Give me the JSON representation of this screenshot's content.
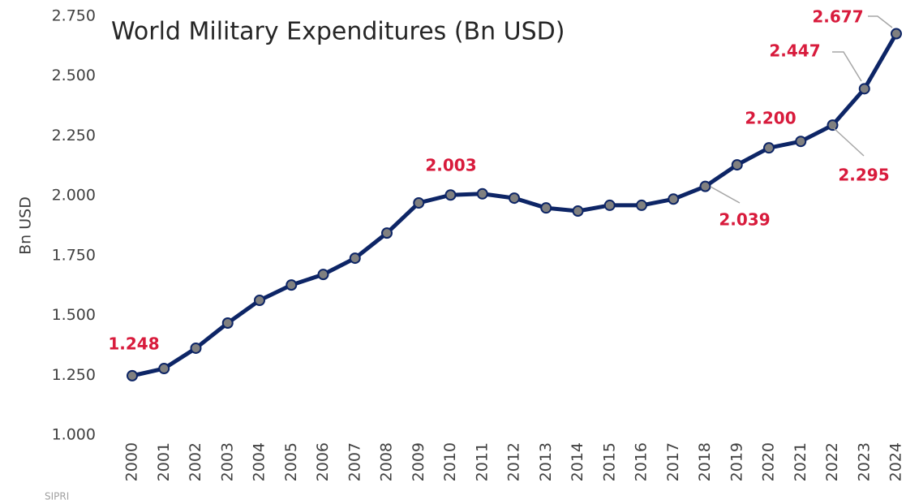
{
  "chart_data": {
    "type": "line",
    "title": "World Military Expenditures (Bn USD)",
    "y_label": "Bn USD",
    "source": "SIPRI",
    "categories": [
      "2000",
      "2001",
      "2002",
      "2003",
      "2004",
      "2005",
      "2006",
      "2007",
      "2008",
      "2009",
      "2010",
      "2011",
      "2012",
      "2013",
      "2014",
      "2015",
      "2016",
      "2017",
      "2018",
      "2019",
      "2020",
      "2021",
      "2022",
      "2023",
      "2024"
    ],
    "series": [
      {
        "name": "World Military Expenditures",
        "color": "#0d2566",
        "marker_color": "#808080",
        "values": [
          1248,
          1278,
          1363,
          1468,
          1563,
          1627,
          1671,
          1739,
          1844,
          1970,
          2003,
          2008,
          1990,
          1949,
          1936,
          1960,
          1960,
          1986,
          2039,
          2129,
          2200,
          2227,
          2295,
          2447,
          2677
        ],
        "value_labels": [
          "1.248",
          null,
          null,
          null,
          null,
          null,
          null,
          null,
          null,
          null,
          "2.003",
          null,
          null,
          null,
          null,
          null,
          null,
          null,
          "2.039",
          null,
          "2.200",
          null,
          "2.295",
          "2.447",
          "2.677"
        ]
      }
    ],
    "ylim": [
      1000,
      2750
    ],
    "yticks": [
      {
        "value": 1000,
        "label": "1.000"
      },
      {
        "value": 1250,
        "label": "1.250"
      },
      {
        "value": 1500,
        "label": "1.500"
      },
      {
        "value": 1750,
        "label": "1.750"
      },
      {
        "value": 2000,
        "label": "2.000"
      },
      {
        "value": 2250,
        "label": "2.250"
      },
      {
        "value": 2500,
        "label": "2.500"
      },
      {
        "value": 2750,
        "label": "2.750"
      }
    ],
    "grid": false
  }
}
